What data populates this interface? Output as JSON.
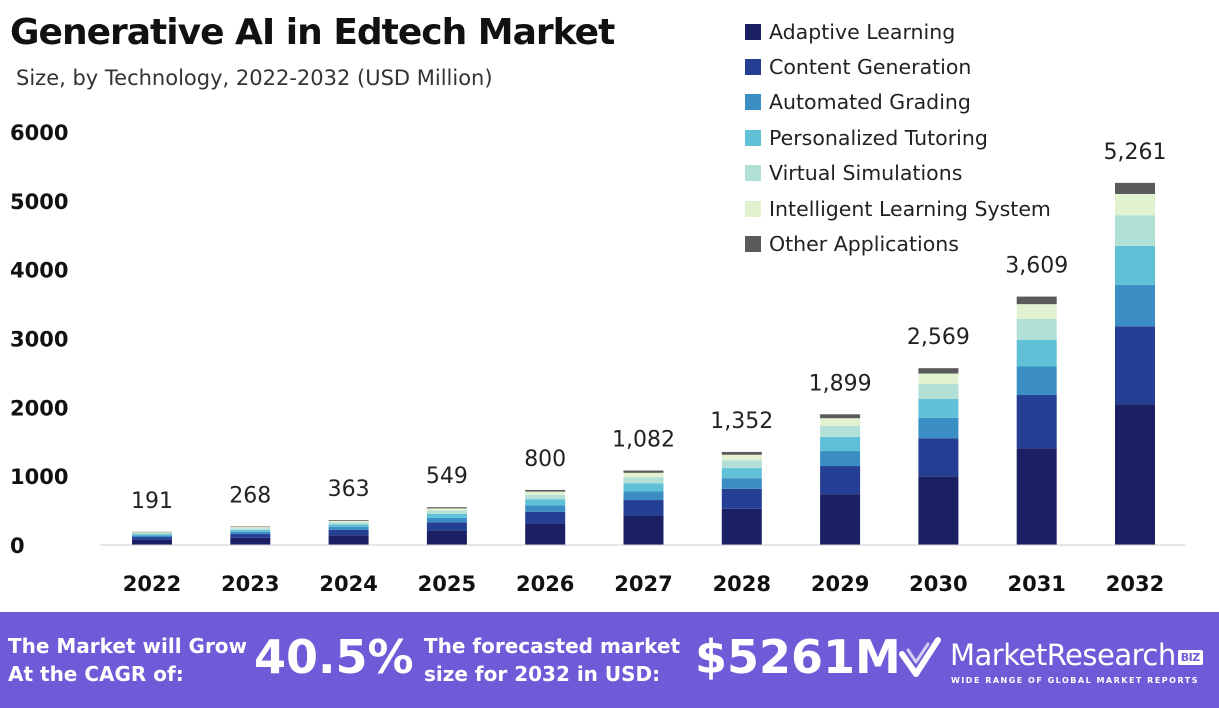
{
  "header": {
    "title": "Generative AI in Edtech Market",
    "subtitle": "Size, by Technology, 2022-2032 (USD Million)"
  },
  "chart_data": {
    "type": "bar",
    "stacked": true,
    "title": "Generative AI in Edtech Market",
    "subtitle": "Size, by Technology, 2022-2032 (USD Million)",
    "xlabel": "",
    "ylabel": "",
    "ylim": [
      0,
      6000
    ],
    "yticks": [
      0,
      1000,
      2000,
      3000,
      4000,
      5000,
      6000
    ],
    "grid": false,
    "legend_position": "top-right",
    "categories": [
      "2022",
      "2023",
      "2024",
      "2025",
      "2026",
      "2027",
      "2028",
      "2029",
      "2030",
      "2031",
      "2032"
    ],
    "totals": [
      191,
      268,
      363,
      549,
      800,
      1082,
      1352,
      1899,
      2569,
      3609,
      5261
    ],
    "total_labels": [
      "191",
      "268",
      "363",
      "549",
      "800",
      "1,082",
      "1,352",
      "1,899",
      "2,569",
      "3,609",
      "5,261"
    ],
    "series": [
      {
        "name": "Adaptive Learning",
        "color": "#1b1f63",
        "values": [
          74,
          104,
          141,
          213,
          311,
          421,
          526,
          739,
          999,
          1404,
          2046
        ]
      },
      {
        "name": "Content Generation",
        "color": "#243f94",
        "values": [
          41,
          57,
          78,
          118,
          172,
          232,
          290,
          408,
          552,
          775,
          1130
        ]
      },
      {
        "name": "Automated Grading",
        "color": "#3a8ec4",
        "values": [
          22,
          31,
          42,
          63,
          92,
          124,
          155,
          218,
          295,
          414,
          603
        ]
      },
      {
        "name": "Personalized Tutoring",
        "color": "#5fc0d8",
        "values": [
          21,
          29,
          39,
          59,
          86,
          117,
          146,
          205,
          277,
          389,
          567
        ]
      },
      {
        "name": "Virtual Simulations",
        "color": "#b2e0d6",
        "values": [
          16,
          23,
          31,
          47,
          68,
          92,
          115,
          161,
          218,
          306,
          446
        ]
      },
      {
        "name": "Intelligent Learning System",
        "color": "#e2f2d0",
        "values": [
          11,
          16,
          21,
          32,
          47,
          63,
          79,
          111,
          150,
          211,
          308
        ]
      },
      {
        "name": "Other Applications",
        "color": "#5a5a5a",
        "values": [
          6,
          8,
          11,
          17,
          24,
          33,
          41,
          57,
          78,
          110,
          161
        ]
      }
    ]
  },
  "footer": {
    "cagr_label_line1": "The Market will Grow",
    "cagr_label_line2": "At the CAGR of:",
    "cagr_value": "40.5%",
    "forecast_label_line1": "The forecasted market",
    "forecast_label_line2": "size for 2032 in USD:",
    "forecast_value": "$5261M",
    "logo_text": "MarketResearch",
    "logo_badge": "BIZ",
    "logo_tagline": "WIDE RANGE OF GLOBAL MARKET REPORTS",
    "logo_icon": "checkmark-logo-icon"
  }
}
